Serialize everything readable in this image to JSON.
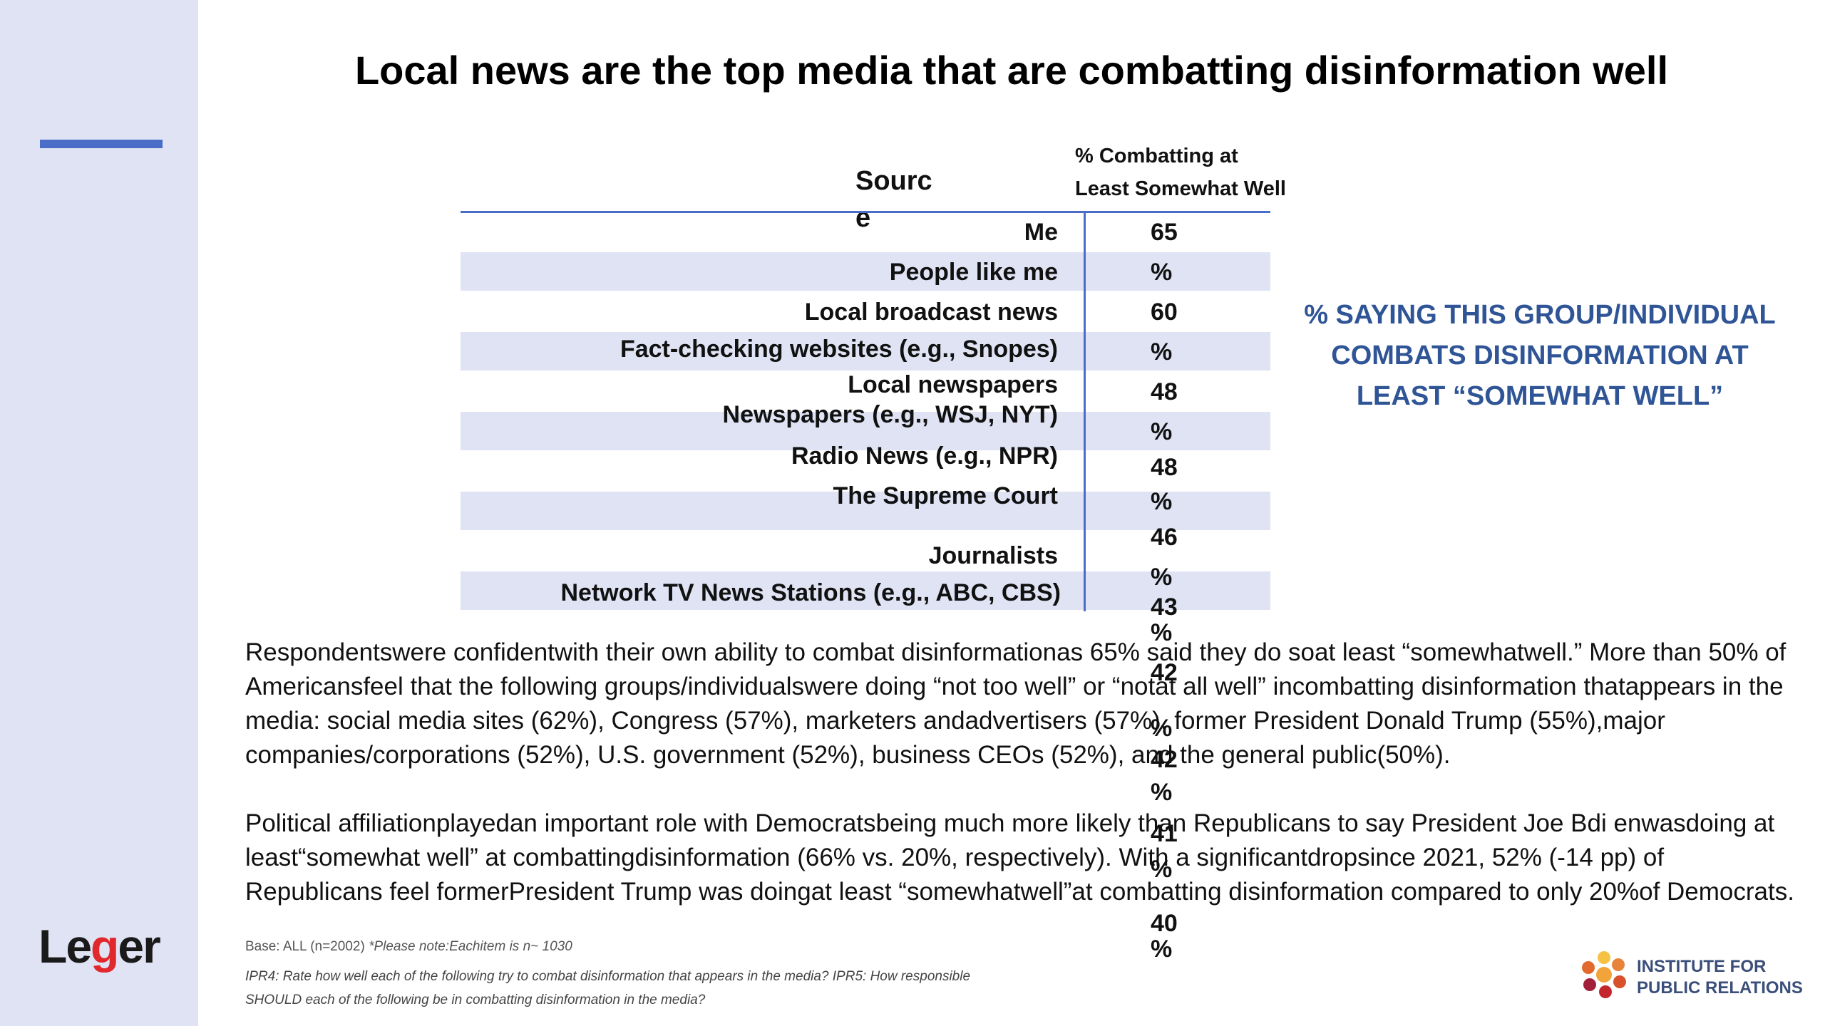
{
  "title": "Local news are the top media that are combatting disinformation well",
  "table": {
    "header_source": "Sourc e",
    "header_pct": "% Combatting at Least Somewhat Well",
    "rows": [
      {
        "label": "Me"
      },
      {
        "label": "People like me"
      },
      {
        "label": "Local broadcast news"
      },
      {
        "label": "Fact-checking websites (e.g., Snopes)"
      },
      {
        "label": "Local newspapers"
      },
      {
        "label": "Newspapers (e.g., WSJ, NYT)"
      },
      {
        "label": "Radio News (e.g., NPR)"
      },
      {
        "label": "The Supreme Court"
      },
      {
        "label": "Journalists"
      },
      {
        "label": "Network TV News Stations (e.g., ABC, CBS)"
      }
    ],
    "values": [
      "65",
      "%",
      "60",
      "%",
      "48",
      "%",
      "48",
      "%",
      "46",
      "%",
      "43",
      "%",
      "42",
      "%",
      "42",
      "%",
      "41",
      "%",
      "40",
      "%"
    ]
  },
  "callout": "% SAYING THIS GROUP/INDIVIDUAL COMBATS DISINFORMATION AT LEAST “SOMEWHAT WELL”",
  "paragraphs": [
    "Respondentswere confidentwith their own ability to combat disinformationas 65% said they do soat least “somewhatwell.” More than 50% of Americansfeel that the following groups/individualswere doing “not too well” or “notat all well” incombatting disinformation thatappears in the media: social media sites (62%), Congress (57%), marketers andadvertisers (57%), former President Donald Trump (55%),major companies/corporations (52%), U.S. government (52%), business CEOs (52%), and the general public(50%).",
    "Political affiliationplayedan important role with Democratsbeing much more likely than Republicans to say President Joe Bdi enwasdoing at least“somewhat well” at combattingdisinformation (66% vs. 20%, respectively). With a significantdropsince 2021, 52% (-14 pp) of Republicans feel formerPresident Trump was doingat least “somewhatwell”at combatting disinformation compared to only 20%of Democrats."
  ],
  "footer": {
    "base": "Base: ALL (n=2002)",
    "note": "*Please note:Eachitem is n~ 1030",
    "question": "IPR4: Rate how well each of the following try to combat disinformation that appears in the media? IPR5: How responsible SHOULD each of the following be in combatting disinformation in the media?"
  },
  "logos": {
    "leger_prefix": "Le",
    "leger_g": "g",
    "leger_suffix": "er",
    "ipr_line1": "INSTITUTE FOR",
    "ipr_line2": "PUBLIC RELATIONS"
  },
  "colors": {
    "sidebar": "#dfe3f3",
    "accent": "#4a6ec8",
    "callout": "#2f5597",
    "leger_red": "#e1292d"
  }
}
